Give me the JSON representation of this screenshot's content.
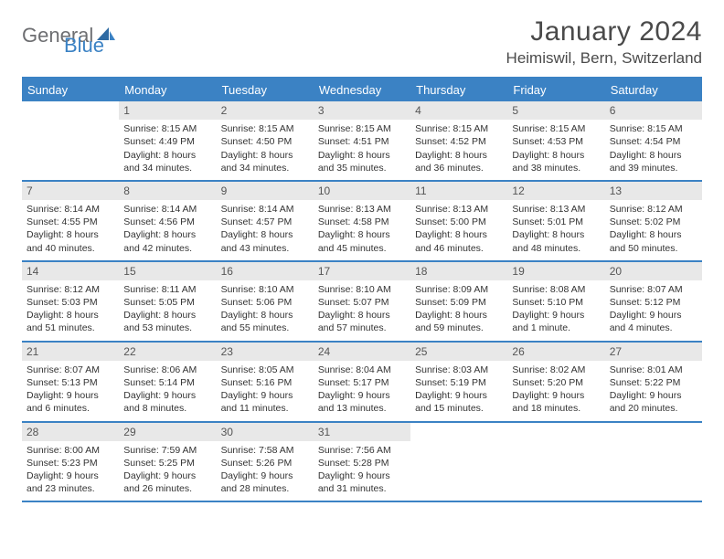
{
  "brand": {
    "part1": "General",
    "part2": "Blue"
  },
  "title": "January 2024",
  "location": "Heimiswil, Bern, Switzerland",
  "colors": {
    "accent": "#3b82c4",
    "header_bg": "#3b82c4",
    "header_fg": "#ffffff",
    "daynum_bg": "#e8e8e8",
    "text": "#333333",
    "logo_gray": "#6d6e71"
  },
  "weekdays": [
    "Sunday",
    "Monday",
    "Tuesday",
    "Wednesday",
    "Thursday",
    "Friday",
    "Saturday"
  ],
  "weeks": [
    [
      {
        "n": "",
        "sr": "",
        "ss": "",
        "dl1": "",
        "dl2": "",
        "empty": true
      },
      {
        "n": "1",
        "sr": "Sunrise: 8:15 AM",
        "ss": "Sunset: 4:49 PM",
        "dl1": "Daylight: 8 hours",
        "dl2": "and 34 minutes."
      },
      {
        "n": "2",
        "sr": "Sunrise: 8:15 AM",
        "ss": "Sunset: 4:50 PM",
        "dl1": "Daylight: 8 hours",
        "dl2": "and 34 minutes."
      },
      {
        "n": "3",
        "sr": "Sunrise: 8:15 AM",
        "ss": "Sunset: 4:51 PM",
        "dl1": "Daylight: 8 hours",
        "dl2": "and 35 minutes."
      },
      {
        "n": "4",
        "sr": "Sunrise: 8:15 AM",
        "ss": "Sunset: 4:52 PM",
        "dl1": "Daylight: 8 hours",
        "dl2": "and 36 minutes."
      },
      {
        "n": "5",
        "sr": "Sunrise: 8:15 AM",
        "ss": "Sunset: 4:53 PM",
        "dl1": "Daylight: 8 hours",
        "dl2": "and 38 minutes."
      },
      {
        "n": "6",
        "sr": "Sunrise: 8:15 AM",
        "ss": "Sunset: 4:54 PM",
        "dl1": "Daylight: 8 hours",
        "dl2": "and 39 minutes."
      }
    ],
    [
      {
        "n": "7",
        "sr": "Sunrise: 8:14 AM",
        "ss": "Sunset: 4:55 PM",
        "dl1": "Daylight: 8 hours",
        "dl2": "and 40 minutes."
      },
      {
        "n": "8",
        "sr": "Sunrise: 8:14 AM",
        "ss": "Sunset: 4:56 PM",
        "dl1": "Daylight: 8 hours",
        "dl2": "and 42 minutes."
      },
      {
        "n": "9",
        "sr": "Sunrise: 8:14 AM",
        "ss": "Sunset: 4:57 PM",
        "dl1": "Daylight: 8 hours",
        "dl2": "and 43 minutes."
      },
      {
        "n": "10",
        "sr": "Sunrise: 8:13 AM",
        "ss": "Sunset: 4:58 PM",
        "dl1": "Daylight: 8 hours",
        "dl2": "and 45 minutes."
      },
      {
        "n": "11",
        "sr": "Sunrise: 8:13 AM",
        "ss": "Sunset: 5:00 PM",
        "dl1": "Daylight: 8 hours",
        "dl2": "and 46 minutes."
      },
      {
        "n": "12",
        "sr": "Sunrise: 8:13 AM",
        "ss": "Sunset: 5:01 PM",
        "dl1": "Daylight: 8 hours",
        "dl2": "and 48 minutes."
      },
      {
        "n": "13",
        "sr": "Sunrise: 8:12 AM",
        "ss": "Sunset: 5:02 PM",
        "dl1": "Daylight: 8 hours",
        "dl2": "and 50 minutes."
      }
    ],
    [
      {
        "n": "14",
        "sr": "Sunrise: 8:12 AM",
        "ss": "Sunset: 5:03 PM",
        "dl1": "Daylight: 8 hours",
        "dl2": "and 51 minutes."
      },
      {
        "n": "15",
        "sr": "Sunrise: 8:11 AM",
        "ss": "Sunset: 5:05 PM",
        "dl1": "Daylight: 8 hours",
        "dl2": "and 53 minutes."
      },
      {
        "n": "16",
        "sr": "Sunrise: 8:10 AM",
        "ss": "Sunset: 5:06 PM",
        "dl1": "Daylight: 8 hours",
        "dl2": "and 55 minutes."
      },
      {
        "n": "17",
        "sr": "Sunrise: 8:10 AM",
        "ss": "Sunset: 5:07 PM",
        "dl1": "Daylight: 8 hours",
        "dl2": "and 57 minutes."
      },
      {
        "n": "18",
        "sr": "Sunrise: 8:09 AM",
        "ss": "Sunset: 5:09 PM",
        "dl1": "Daylight: 8 hours",
        "dl2": "and 59 minutes."
      },
      {
        "n": "19",
        "sr": "Sunrise: 8:08 AM",
        "ss": "Sunset: 5:10 PM",
        "dl1": "Daylight: 9 hours",
        "dl2": "and 1 minute."
      },
      {
        "n": "20",
        "sr": "Sunrise: 8:07 AM",
        "ss": "Sunset: 5:12 PM",
        "dl1": "Daylight: 9 hours",
        "dl2": "and 4 minutes."
      }
    ],
    [
      {
        "n": "21",
        "sr": "Sunrise: 8:07 AM",
        "ss": "Sunset: 5:13 PM",
        "dl1": "Daylight: 9 hours",
        "dl2": "and 6 minutes."
      },
      {
        "n": "22",
        "sr": "Sunrise: 8:06 AM",
        "ss": "Sunset: 5:14 PM",
        "dl1": "Daylight: 9 hours",
        "dl2": "and 8 minutes."
      },
      {
        "n": "23",
        "sr": "Sunrise: 8:05 AM",
        "ss": "Sunset: 5:16 PM",
        "dl1": "Daylight: 9 hours",
        "dl2": "and 11 minutes."
      },
      {
        "n": "24",
        "sr": "Sunrise: 8:04 AM",
        "ss": "Sunset: 5:17 PM",
        "dl1": "Daylight: 9 hours",
        "dl2": "and 13 minutes."
      },
      {
        "n": "25",
        "sr": "Sunrise: 8:03 AM",
        "ss": "Sunset: 5:19 PM",
        "dl1": "Daylight: 9 hours",
        "dl2": "and 15 minutes."
      },
      {
        "n": "26",
        "sr": "Sunrise: 8:02 AM",
        "ss": "Sunset: 5:20 PM",
        "dl1": "Daylight: 9 hours",
        "dl2": "and 18 minutes."
      },
      {
        "n": "27",
        "sr": "Sunrise: 8:01 AM",
        "ss": "Sunset: 5:22 PM",
        "dl1": "Daylight: 9 hours",
        "dl2": "and 20 minutes."
      }
    ],
    [
      {
        "n": "28",
        "sr": "Sunrise: 8:00 AM",
        "ss": "Sunset: 5:23 PM",
        "dl1": "Daylight: 9 hours",
        "dl2": "and 23 minutes."
      },
      {
        "n": "29",
        "sr": "Sunrise: 7:59 AM",
        "ss": "Sunset: 5:25 PM",
        "dl1": "Daylight: 9 hours",
        "dl2": "and 26 minutes."
      },
      {
        "n": "30",
        "sr": "Sunrise: 7:58 AM",
        "ss": "Sunset: 5:26 PM",
        "dl1": "Daylight: 9 hours",
        "dl2": "and 28 minutes."
      },
      {
        "n": "31",
        "sr": "Sunrise: 7:56 AM",
        "ss": "Sunset: 5:28 PM",
        "dl1": "Daylight: 9 hours",
        "dl2": "and 31 minutes."
      },
      {
        "n": "",
        "sr": "",
        "ss": "",
        "dl1": "",
        "dl2": "",
        "empty": true
      },
      {
        "n": "",
        "sr": "",
        "ss": "",
        "dl1": "",
        "dl2": "",
        "empty": true
      },
      {
        "n": "",
        "sr": "",
        "ss": "",
        "dl1": "",
        "dl2": "",
        "empty": true
      }
    ]
  ]
}
